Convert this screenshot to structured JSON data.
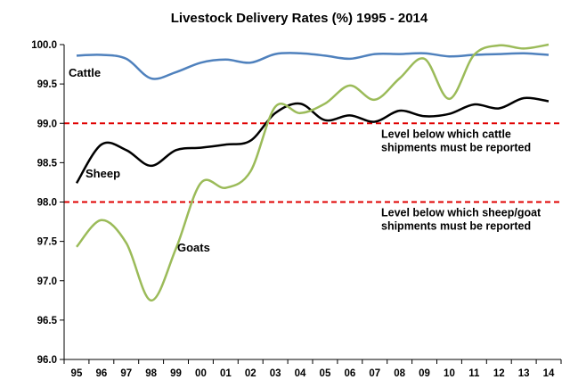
{
  "chart_data": {
    "type": "line",
    "title": "Livestock Delivery Rates (%) 1995 - 2014",
    "xlabel": "",
    "ylabel": "",
    "categories": [
      "95",
      "96",
      "97",
      "98",
      "99",
      "00",
      "01",
      "02",
      "03",
      "04",
      "05",
      "06",
      "07",
      "08",
      "09",
      "10",
      "11",
      "12",
      "13",
      "14"
    ],
    "ylim": [
      96.0,
      100.0
    ],
    "yticks": [
      "96.0",
      "96.5",
      "97.0",
      "97.5",
      "98.0",
      "98.5",
      "99.0",
      "99.5",
      "100.0"
    ],
    "grid": false,
    "series": [
      {
        "name": "Cattle",
        "color": "#4f81bd",
        "values": [
          99.86,
          99.87,
          99.82,
          99.57,
          99.65,
          99.77,
          99.81,
          99.77,
          99.88,
          99.89,
          99.86,
          99.82,
          99.88,
          99.88,
          99.89,
          99.85,
          99.87,
          99.88,
          99.89,
          99.87
        ]
      },
      {
        "name": "Sheep",
        "color": "#000000",
        "values": [
          98.24,
          98.73,
          98.66,
          98.46,
          98.66,
          98.69,
          98.73,
          98.78,
          99.13,
          99.25,
          99.04,
          99.1,
          99.02,
          99.16,
          99.09,
          99.12,
          99.24,
          99.19,
          99.32,
          99.28
        ]
      },
      {
        "name": "Goats",
        "color": "#9bbb59",
        "values": [
          97.43,
          97.77,
          97.48,
          96.75,
          97.41,
          98.24,
          98.18,
          98.39,
          99.21,
          99.13,
          99.25,
          99.48,
          99.3,
          99.57,
          99.82,
          99.31,
          99.87,
          99.99,
          99.95,
          100.0
        ]
      }
    ],
    "reference_lines": [
      {
        "y": 99.0,
        "color": "#e00000",
        "style": "dashed",
        "label_line1": "Level below which cattle",
        "label_line2": "shipments must be reported"
      },
      {
        "y": 98.0,
        "color": "#e00000",
        "style": "dashed",
        "label_line1": "Level below which sheep/goat",
        "label_line2": "shipments must be reported"
      }
    ]
  }
}
